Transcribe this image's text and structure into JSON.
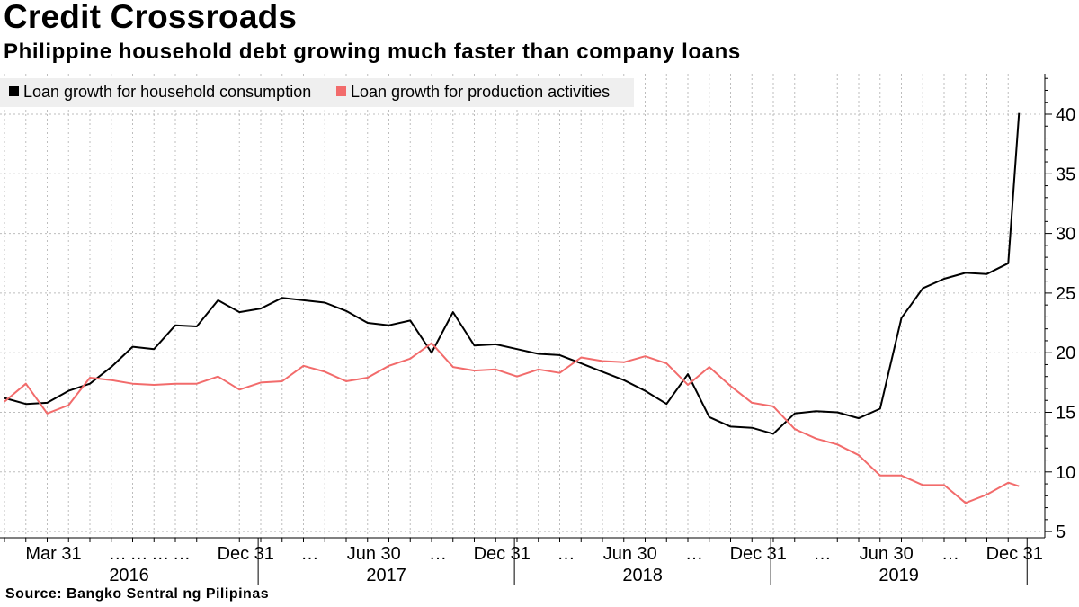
{
  "header": {
    "title": "Credit Crossroads",
    "subtitle": "Philippine household debt growing much faster than company loans"
  },
  "footer": {
    "source": "Source: Bangko Sentral ng Pilipinas"
  },
  "colors": {
    "household": "#000000",
    "production": "#f26b6b",
    "grid": "#bdbdbd",
    "legend_bg": "#efefef"
  },
  "chart_data": {
    "type": "line",
    "title": "Credit Crossroads",
    "subtitle": "Philippine household debt growing much faster than company loans",
    "xlabel": "",
    "ylabel": "",
    "ylim": [
      4.0,
      43.0
    ],
    "yticks": [
      5,
      10,
      15,
      20,
      25,
      30,
      35,
      40
    ],
    "grid": true,
    "legend_position": "top-left",
    "x": [
      "2016-01",
      "2016-02",
      "2016-03",
      "2016-04",
      "2016-05",
      "2016-06",
      "2016-07",
      "2016-08",
      "2016-09",
      "2016-10",
      "2016-11",
      "2016-12",
      "2017-01",
      "2017-02",
      "2017-03",
      "2017-04",
      "2017-05",
      "2017-06",
      "2017-07",
      "2017-08",
      "2017-09",
      "2017-10",
      "2017-11",
      "2017-12",
      "2018-01",
      "2018-02",
      "2018-03",
      "2018-04",
      "2018-05",
      "2018-06",
      "2018-07",
      "2018-08",
      "2018-09",
      "2018-10",
      "2018-11",
      "2018-12",
      "2019-01",
      "2019-02",
      "2019-03",
      "2019-04",
      "2019-05",
      "2019-06",
      "2019-07",
      "2019-08",
      "2019-09",
      "2019-10",
      "2019-11",
      "2019-12"
    ],
    "series": [
      {
        "name": "Loan growth for household consumption",
        "color": "#000000",
        "values": [
          16.2,
          15.7,
          15.8,
          16.8,
          17.4,
          18.8,
          20.5,
          20.3,
          22.3,
          22.2,
          24.4,
          23.4,
          23.7,
          24.6,
          24.4,
          24.2,
          23.5,
          22.5,
          22.3,
          22.7,
          20.0,
          23.4,
          20.6,
          20.7,
          20.3,
          19.9,
          19.8,
          19.1,
          18.4,
          17.7,
          16.8,
          15.7,
          18.2,
          14.6,
          13.8,
          13.7,
          13.2,
          14.9,
          15.1,
          15.0,
          14.5,
          15.3,
          22.9,
          25.4,
          26.2,
          26.7,
          26.6,
          27.5
        ]
      },
      {
        "name": "Loan growth for production activities",
        "color": "#f26b6b",
        "values": [
          15.9,
          17.4,
          14.9,
          15.6,
          17.9,
          17.7,
          17.4,
          17.3,
          17.4,
          17.4,
          18.0,
          16.9,
          17.5,
          17.6,
          18.9,
          18.4,
          17.6,
          17.9,
          18.9,
          19.5,
          20.8,
          18.8,
          18.5,
          18.6,
          18.0,
          18.6,
          18.3,
          19.6,
          19.3,
          19.2,
          19.7,
          19.1,
          17.3,
          18.8,
          17.2,
          15.8,
          15.5,
          13.6,
          12.8,
          12.3,
          11.4,
          9.7,
          9.7,
          8.9,
          8.9,
          7.4,
          8.1,
          9.1
        ]
      }
    ],
    "extra_points": {
      "household_last": 40.1,
      "production_last": 8.8
    },
    "x_tick_labels": [
      {
        "month": 3,
        "label": "Mar 31"
      },
      {
        "month": 6,
        "label": "…"
      },
      {
        "month": 7,
        "label": "…"
      },
      {
        "month": 8,
        "label": "…"
      },
      {
        "month": 9,
        "label": "…"
      },
      {
        "month": 12,
        "label": "Dec 31"
      },
      {
        "month": 15,
        "label": "…"
      },
      {
        "month": 18,
        "label": "Jun 30"
      },
      {
        "month": 21,
        "label": "…"
      },
      {
        "month": 24,
        "label": "Dec 31"
      },
      {
        "month": 27,
        "label": "…"
      },
      {
        "month": 30,
        "label": "Jun 30"
      },
      {
        "month": 33,
        "label": "…"
      },
      {
        "month": 36,
        "label": "Dec 31"
      },
      {
        "month": 39,
        "label": "…"
      },
      {
        "month": 42,
        "label": "Jun 30"
      },
      {
        "month": 45,
        "label": "…"
      },
      {
        "month": 48,
        "label": "Dec 31"
      }
    ],
    "years": [
      "2016",
      "2017",
      "2018",
      "2019"
    ]
  }
}
